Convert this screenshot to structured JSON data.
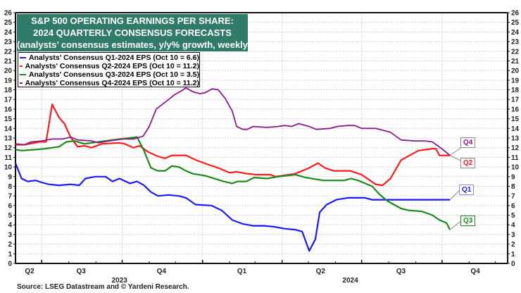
{
  "chart_data": {
    "type": "line",
    "title": [
      "S&P 500 OPERATING EARNINGS PER SHARE:",
      "2024 QUARTERLY CONSENSUS FORECASTS",
      "(analysts’ consensus estimates, y/y% growth, weekly)"
    ],
    "source": "Source: LSEG Datastream and © Yardeni Research.",
    "xlim": [
      "2023-06-01",
      "2024-12-15"
    ],
    "ylim": [
      0,
      26
    ],
    "yticks": [
      0,
      1,
      2,
      3,
      4,
      5,
      6,
      7,
      8,
      9,
      10,
      11,
      12,
      13,
      14,
      15,
      16,
      17,
      18,
      19,
      20,
      21,
      22,
      23,
      24,
      25,
      26
    ],
    "x_quarter_ticks": [
      {
        "label": "Q2",
        "date": "2023-05-15"
      },
      {
        "label": "Q3",
        "date": "2023-08-15"
      },
      {
        "label": "Q4",
        "date": "2023-11-15"
      },
      {
        "label": "Q1",
        "date": "2024-02-15"
      },
      {
        "label": "Q2",
        "date": "2024-05-15"
      },
      {
        "label": "Q3",
        "date": "2024-08-15"
      },
      {
        "label": "Q4",
        "date": "2024-11-08"
      }
    ],
    "quarter_boundaries": [
      "2023-07-01",
      "2023-10-01",
      "2024-01-01",
      "2024-04-01",
      "2024-07-01",
      "2024-10-01"
    ],
    "years": [
      {
        "label": "2023",
        "date": "2023-09-28"
      },
      {
        "label": "2024",
        "date": "2024-06-18"
      }
    ],
    "grid": true,
    "legend_position": "top-left",
    "series": [
      {
        "name": "Analysts' Consensus Q1-2024 EPS (Oct 10 = 6.6)",
        "end_label": "Q1",
        "color": "#1a1aff",
        "points": [
          [
            "2023-06-01",
            10.4
          ],
          [
            "2023-06-08",
            8.8
          ],
          [
            "2023-06-15",
            8.5
          ],
          [
            "2023-06-24",
            8.6
          ],
          [
            "2023-07-01",
            8.4
          ],
          [
            "2023-07-09",
            8.2
          ],
          [
            "2023-07-21",
            8.1
          ],
          [
            "2023-08-03",
            8.2
          ],
          [
            "2023-08-13",
            8.1
          ],
          [
            "2023-08-20",
            8.8
          ],
          [
            "2023-08-31",
            9.0
          ],
          [
            "2023-09-12",
            9.0
          ],
          [
            "2023-09-20",
            8.5
          ],
          [
            "2023-09-28",
            8.8
          ],
          [
            "2023-10-10",
            8.3
          ],
          [
            "2023-10-18",
            8.5
          ],
          [
            "2023-10-26",
            8.1
          ],
          [
            "2023-11-03",
            7.4
          ],
          [
            "2023-11-11",
            7.0
          ],
          [
            "2023-11-23",
            7.1
          ],
          [
            "2023-12-05",
            7.0
          ],
          [
            "2023-12-13",
            6.8
          ],
          [
            "2023-12-24",
            6.1
          ],
          [
            "2024-01-11",
            6.0
          ],
          [
            "2024-01-23",
            5.5
          ],
          [
            "2024-02-04",
            4.5
          ],
          [
            "2024-02-16",
            4.1
          ],
          [
            "2024-02-28",
            3.9
          ],
          [
            "2024-03-11",
            3.9
          ],
          [
            "2024-03-23",
            3.8
          ],
          [
            "2024-04-04",
            3.6
          ],
          [
            "2024-04-16",
            3.5
          ],
          [
            "2024-04-24",
            3.3
          ],
          [
            "2024-05-02",
            1.3
          ],
          [
            "2024-05-09",
            2.5
          ],
          [
            "2024-05-14",
            5.3
          ],
          [
            "2024-05-22",
            6.1
          ],
          [
            "2024-06-02",
            6.6
          ],
          [
            "2024-06-15",
            6.8
          ],
          [
            "2024-07-05",
            6.8
          ],
          [
            "2024-07-13",
            6.6
          ],
          [
            "2024-10-10",
            6.6
          ]
        ]
      },
      {
        "name": "Analysts' Consensus Q2-2024 EPS (Oct 10 = 11.2)",
        "end_label": "Q2",
        "color": "#ff1a1a",
        "points": [
          [
            "2023-06-01",
            12.4
          ],
          [
            "2023-06-11",
            12.3
          ],
          [
            "2023-06-28",
            12.6
          ],
          [
            "2023-07-06",
            12.6
          ],
          [
            "2023-07-13",
            16.5
          ],
          [
            "2023-07-21",
            15.1
          ],
          [
            "2023-07-27",
            14.5
          ],
          [
            "2023-08-03",
            13.1
          ],
          [
            "2023-08-11",
            12.1
          ],
          [
            "2023-08-19",
            12.2
          ],
          [
            "2023-08-27",
            12.0
          ],
          [
            "2023-09-08",
            12.4
          ],
          [
            "2023-09-28",
            12.5
          ],
          [
            "2023-10-04",
            12.4
          ],
          [
            "2023-10-14",
            12.0
          ],
          [
            "2023-10-21",
            12.2
          ],
          [
            "2023-10-30",
            11.6
          ],
          [
            "2023-11-11",
            11.1
          ],
          [
            "2023-11-19",
            10.9
          ],
          [
            "2023-11-27",
            11.2
          ],
          [
            "2023-12-13",
            11.2
          ],
          [
            "2023-12-25",
            10.7
          ],
          [
            "2024-01-06",
            10.3
          ],
          [
            "2024-01-19",
            9.9
          ],
          [
            "2024-02-01",
            9.4
          ],
          [
            "2024-02-09",
            9.5
          ],
          [
            "2024-02-21",
            9.3
          ],
          [
            "2024-03-03",
            9.2
          ],
          [
            "2024-03-19",
            9.2
          ],
          [
            "2024-03-24",
            9.0
          ],
          [
            "2024-04-16",
            9.3
          ],
          [
            "2024-05-02",
            9.9
          ],
          [
            "2024-05-12",
            10.4
          ],
          [
            "2024-05-20",
            9.9
          ],
          [
            "2024-05-30",
            9.6
          ],
          [
            "2024-06-18",
            9.6
          ],
          [
            "2024-07-01",
            9.2
          ],
          [
            "2024-07-17",
            8.2
          ],
          [
            "2024-07-25",
            8.1
          ],
          [
            "2024-08-03",
            8.8
          ],
          [
            "2024-08-15",
            10.7
          ],
          [
            "2024-08-25",
            11.2
          ],
          [
            "2024-09-04",
            11.7
          ],
          [
            "2024-09-20",
            11.9
          ],
          [
            "2024-09-24",
            11.9
          ],
          [
            "2024-09-28",
            11.2
          ],
          [
            "2024-10-10",
            11.2
          ]
        ]
      },
      {
        "name": "Analysts' Consensus Q3-2024 EPS (Oct 10 = 3.5)",
        "end_label": "Q3",
        "color": "#1a8a1a",
        "points": [
          [
            "2023-06-01",
            11.8
          ],
          [
            "2023-06-08",
            11.7
          ],
          [
            "2023-06-24",
            11.8
          ],
          [
            "2023-07-05",
            11.9
          ],
          [
            "2023-07-21",
            12.1
          ],
          [
            "2023-07-29",
            12.6
          ],
          [
            "2023-08-07",
            12.7
          ],
          [
            "2023-08-19",
            12.4
          ],
          [
            "2023-08-27",
            12.5
          ],
          [
            "2023-09-20",
            12.8
          ],
          [
            "2023-10-18",
            13.1
          ],
          [
            "2023-10-26",
            11.7
          ],
          [
            "2023-11-03",
            9.9
          ],
          [
            "2023-11-11",
            9.6
          ],
          [
            "2023-11-19",
            9.6
          ],
          [
            "2023-11-27",
            10.1
          ],
          [
            "2023-12-05",
            10.0
          ],
          [
            "2023-12-13",
            9.6
          ],
          [
            "2023-12-21",
            9.3
          ],
          [
            "2024-01-04",
            9.1
          ],
          [
            "2024-01-25",
            8.5
          ],
          [
            "2024-02-04",
            8.3
          ],
          [
            "2024-02-10",
            8.5
          ],
          [
            "2024-02-20",
            8.5
          ],
          [
            "2024-02-29",
            8.9
          ],
          [
            "2024-03-15",
            8.8
          ],
          [
            "2024-03-27",
            9.0
          ],
          [
            "2024-04-16",
            9.2
          ],
          [
            "2024-04-28",
            8.9
          ],
          [
            "2024-05-18",
            8.6
          ],
          [
            "2024-06-11",
            8.6
          ],
          [
            "2024-06-19",
            8.8
          ],
          [
            "2024-06-27",
            8.6
          ],
          [
            "2024-07-05",
            8.3
          ],
          [
            "2024-07-13",
            8.0
          ],
          [
            "2024-07-21",
            7.2
          ],
          [
            "2024-07-30",
            6.5
          ],
          [
            "2024-08-07",
            6.1
          ],
          [
            "2024-08-15",
            5.7
          ],
          [
            "2024-08-24",
            5.5
          ],
          [
            "2024-09-08",
            5.4
          ],
          [
            "2024-09-20",
            5.0
          ],
          [
            "2024-09-28",
            4.5
          ],
          [
            "2024-10-06",
            4.2
          ],
          [
            "2024-10-10",
            3.5
          ]
        ]
      },
      {
        "name": "Analysts' Consensus Q4-2024 EPS (Oct 10 = 11.2)",
        "end_label": "Q4",
        "color": "#8b1a8b",
        "points": [
          [
            "2023-06-01",
            12.3
          ],
          [
            "2023-06-11",
            12.3
          ],
          [
            "2023-06-19",
            12.6
          ],
          [
            "2023-07-01",
            12.7
          ],
          [
            "2023-07-13",
            12.9
          ],
          [
            "2023-07-25",
            12.9
          ],
          [
            "2023-08-03",
            13.1
          ],
          [
            "2023-08-11",
            12.8
          ],
          [
            "2023-08-27",
            12.7
          ],
          [
            "2023-09-04",
            12.5
          ],
          [
            "2023-09-16",
            12.7
          ],
          [
            "2023-10-02",
            12.9
          ],
          [
            "2023-10-14",
            12.9
          ],
          [
            "2023-10-25",
            13.2
          ],
          [
            "2023-11-01",
            14.2
          ],
          [
            "2023-11-09",
            16.0
          ],
          [
            "2023-11-19",
            16.7
          ],
          [
            "2023-11-30",
            17.5
          ],
          [
            "2023-12-08",
            17.9
          ],
          [
            "2023-12-13",
            18.2
          ],
          [
            "2023-12-21",
            17.8
          ],
          [
            "2023-12-29",
            17.6
          ],
          [
            "2024-01-04",
            17.7
          ],
          [
            "2024-01-12",
            18.1
          ],
          [
            "2024-01-19",
            18.0
          ],
          [
            "2024-01-27",
            17.1
          ],
          [
            "2024-02-04",
            15.8
          ],
          [
            "2024-02-09",
            14.2
          ],
          [
            "2024-02-16",
            13.9
          ],
          [
            "2024-02-21",
            13.9
          ],
          [
            "2024-02-28",
            14.2
          ],
          [
            "2024-03-15",
            14.1
          ],
          [
            "2024-03-27",
            14.2
          ],
          [
            "2024-04-04",
            14.3
          ],
          [
            "2024-04-12",
            14.2
          ],
          [
            "2024-04-20",
            14.5
          ],
          [
            "2024-05-02",
            14.2
          ],
          [
            "2024-05-10",
            13.9
          ],
          [
            "2024-05-26",
            14.0
          ],
          [
            "2024-06-03",
            14.2
          ],
          [
            "2024-06-15",
            14.3
          ],
          [
            "2024-06-23",
            14.3
          ],
          [
            "2024-07-01",
            14.0
          ],
          [
            "2024-07-17",
            14.0
          ],
          [
            "2024-08-03",
            13.6
          ],
          [
            "2024-08-15",
            12.8
          ],
          [
            "2024-08-31",
            12.7
          ],
          [
            "2024-09-12",
            12.7
          ],
          [
            "2024-09-20",
            12.6
          ],
          [
            "2024-10-02",
            11.8
          ],
          [
            "2024-10-10",
            11.2
          ]
        ]
      }
    ]
  }
}
